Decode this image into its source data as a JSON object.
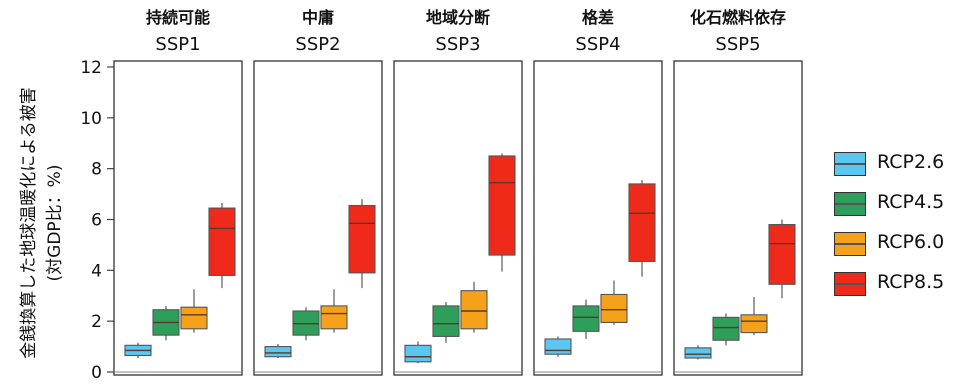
{
  "chart_data": {
    "type": "boxplot",
    "ylabel_line1": "金銭換算した地球温暖化による被害",
    "ylabel_line2": "(対GDP比：%)",
    "ylim": [
      0,
      12
    ],
    "yticks": [
      "0",
      "2",
      "4",
      "6",
      "8",
      "10",
      "12"
    ],
    "legend_position": "right",
    "panels": [
      {
        "title": "持続可能",
        "subtitle": "SSP1"
      },
      {
        "title": "中庸",
        "subtitle": "SSP2"
      },
      {
        "title": "地域分断",
        "subtitle": "SSP3"
      },
      {
        "title": "格差",
        "subtitle": "SSP4"
      },
      {
        "title": "化石燃料依存",
        "subtitle": "SSP5"
      }
    ],
    "series": [
      {
        "name": "RCP2.6",
        "color": "#5BC6F0",
        "boxes": [
          {
            "min": 0.55,
            "q1": 0.65,
            "median": 0.85,
            "q3": 1.05,
            "max": 1.15
          },
          {
            "min": 0.55,
            "q1": 0.6,
            "median": 0.75,
            "q3": 1.0,
            "max": 1.1
          },
          {
            "min": 0.35,
            "q1": 0.4,
            "median": 0.6,
            "q3": 1.05,
            "max": 1.2
          },
          {
            "min": 0.6,
            "q1": 0.7,
            "median": 0.85,
            "q3": 1.3,
            "max": 1.4
          },
          {
            "min": 0.5,
            "q1": 0.55,
            "median": 0.7,
            "q3": 0.95,
            "max": 1.05
          }
        ]
      },
      {
        "name": "RCP4.5",
        "color": "#2E9E5B",
        "boxes": [
          {
            "min": 1.25,
            "q1": 1.45,
            "median": 1.95,
            "q3": 2.45,
            "max": 2.6
          },
          {
            "min": 1.25,
            "q1": 1.45,
            "median": 1.9,
            "q3": 2.4,
            "max": 2.55
          },
          {
            "min": 1.15,
            "q1": 1.4,
            "median": 1.9,
            "q3": 2.6,
            "max": 2.75
          },
          {
            "min": 1.3,
            "q1": 1.6,
            "median": 2.15,
            "q3": 2.6,
            "max": 2.85
          },
          {
            "min": 1.05,
            "q1": 1.25,
            "median": 1.75,
            "q3": 2.15,
            "max": 2.3
          }
        ]
      },
      {
        "name": "RCP6.0",
        "color": "#F5A21A",
        "boxes": [
          {
            "min": 1.55,
            "q1": 1.7,
            "median": 2.25,
            "q3": 2.55,
            "max": 3.25
          },
          {
            "min": 1.55,
            "q1": 1.7,
            "median": 2.3,
            "q3": 2.6,
            "max": 3.25
          },
          {
            "min": 1.55,
            "q1": 1.7,
            "median": 2.4,
            "q3": 3.2,
            "max": 3.55
          },
          {
            "min": 1.85,
            "q1": 1.95,
            "median": 2.45,
            "q3": 3.05,
            "max": 3.6
          },
          {
            "min": 1.45,
            "q1": 1.55,
            "median": 2.0,
            "q3": 2.25,
            "max": 2.95
          }
        ]
      },
      {
        "name": "RCP8.5",
        "color": "#F02A1A",
        "boxes": [
          {
            "min": 3.3,
            "q1": 3.8,
            "median": 5.65,
            "q3": 6.45,
            "max": 6.65
          },
          {
            "min": 3.3,
            "q1": 3.9,
            "median": 5.85,
            "q3": 6.55,
            "max": 6.8
          },
          {
            "min": 3.95,
            "q1": 4.6,
            "median": 7.45,
            "q3": 8.5,
            "max": 8.6
          },
          {
            "min": 3.75,
            "q1": 4.35,
            "median": 6.25,
            "q3": 7.4,
            "max": 7.55
          },
          {
            "min": 2.9,
            "q1": 3.45,
            "median": 5.05,
            "q3": 5.8,
            "max": 6.0
          }
        ]
      }
    ]
  }
}
